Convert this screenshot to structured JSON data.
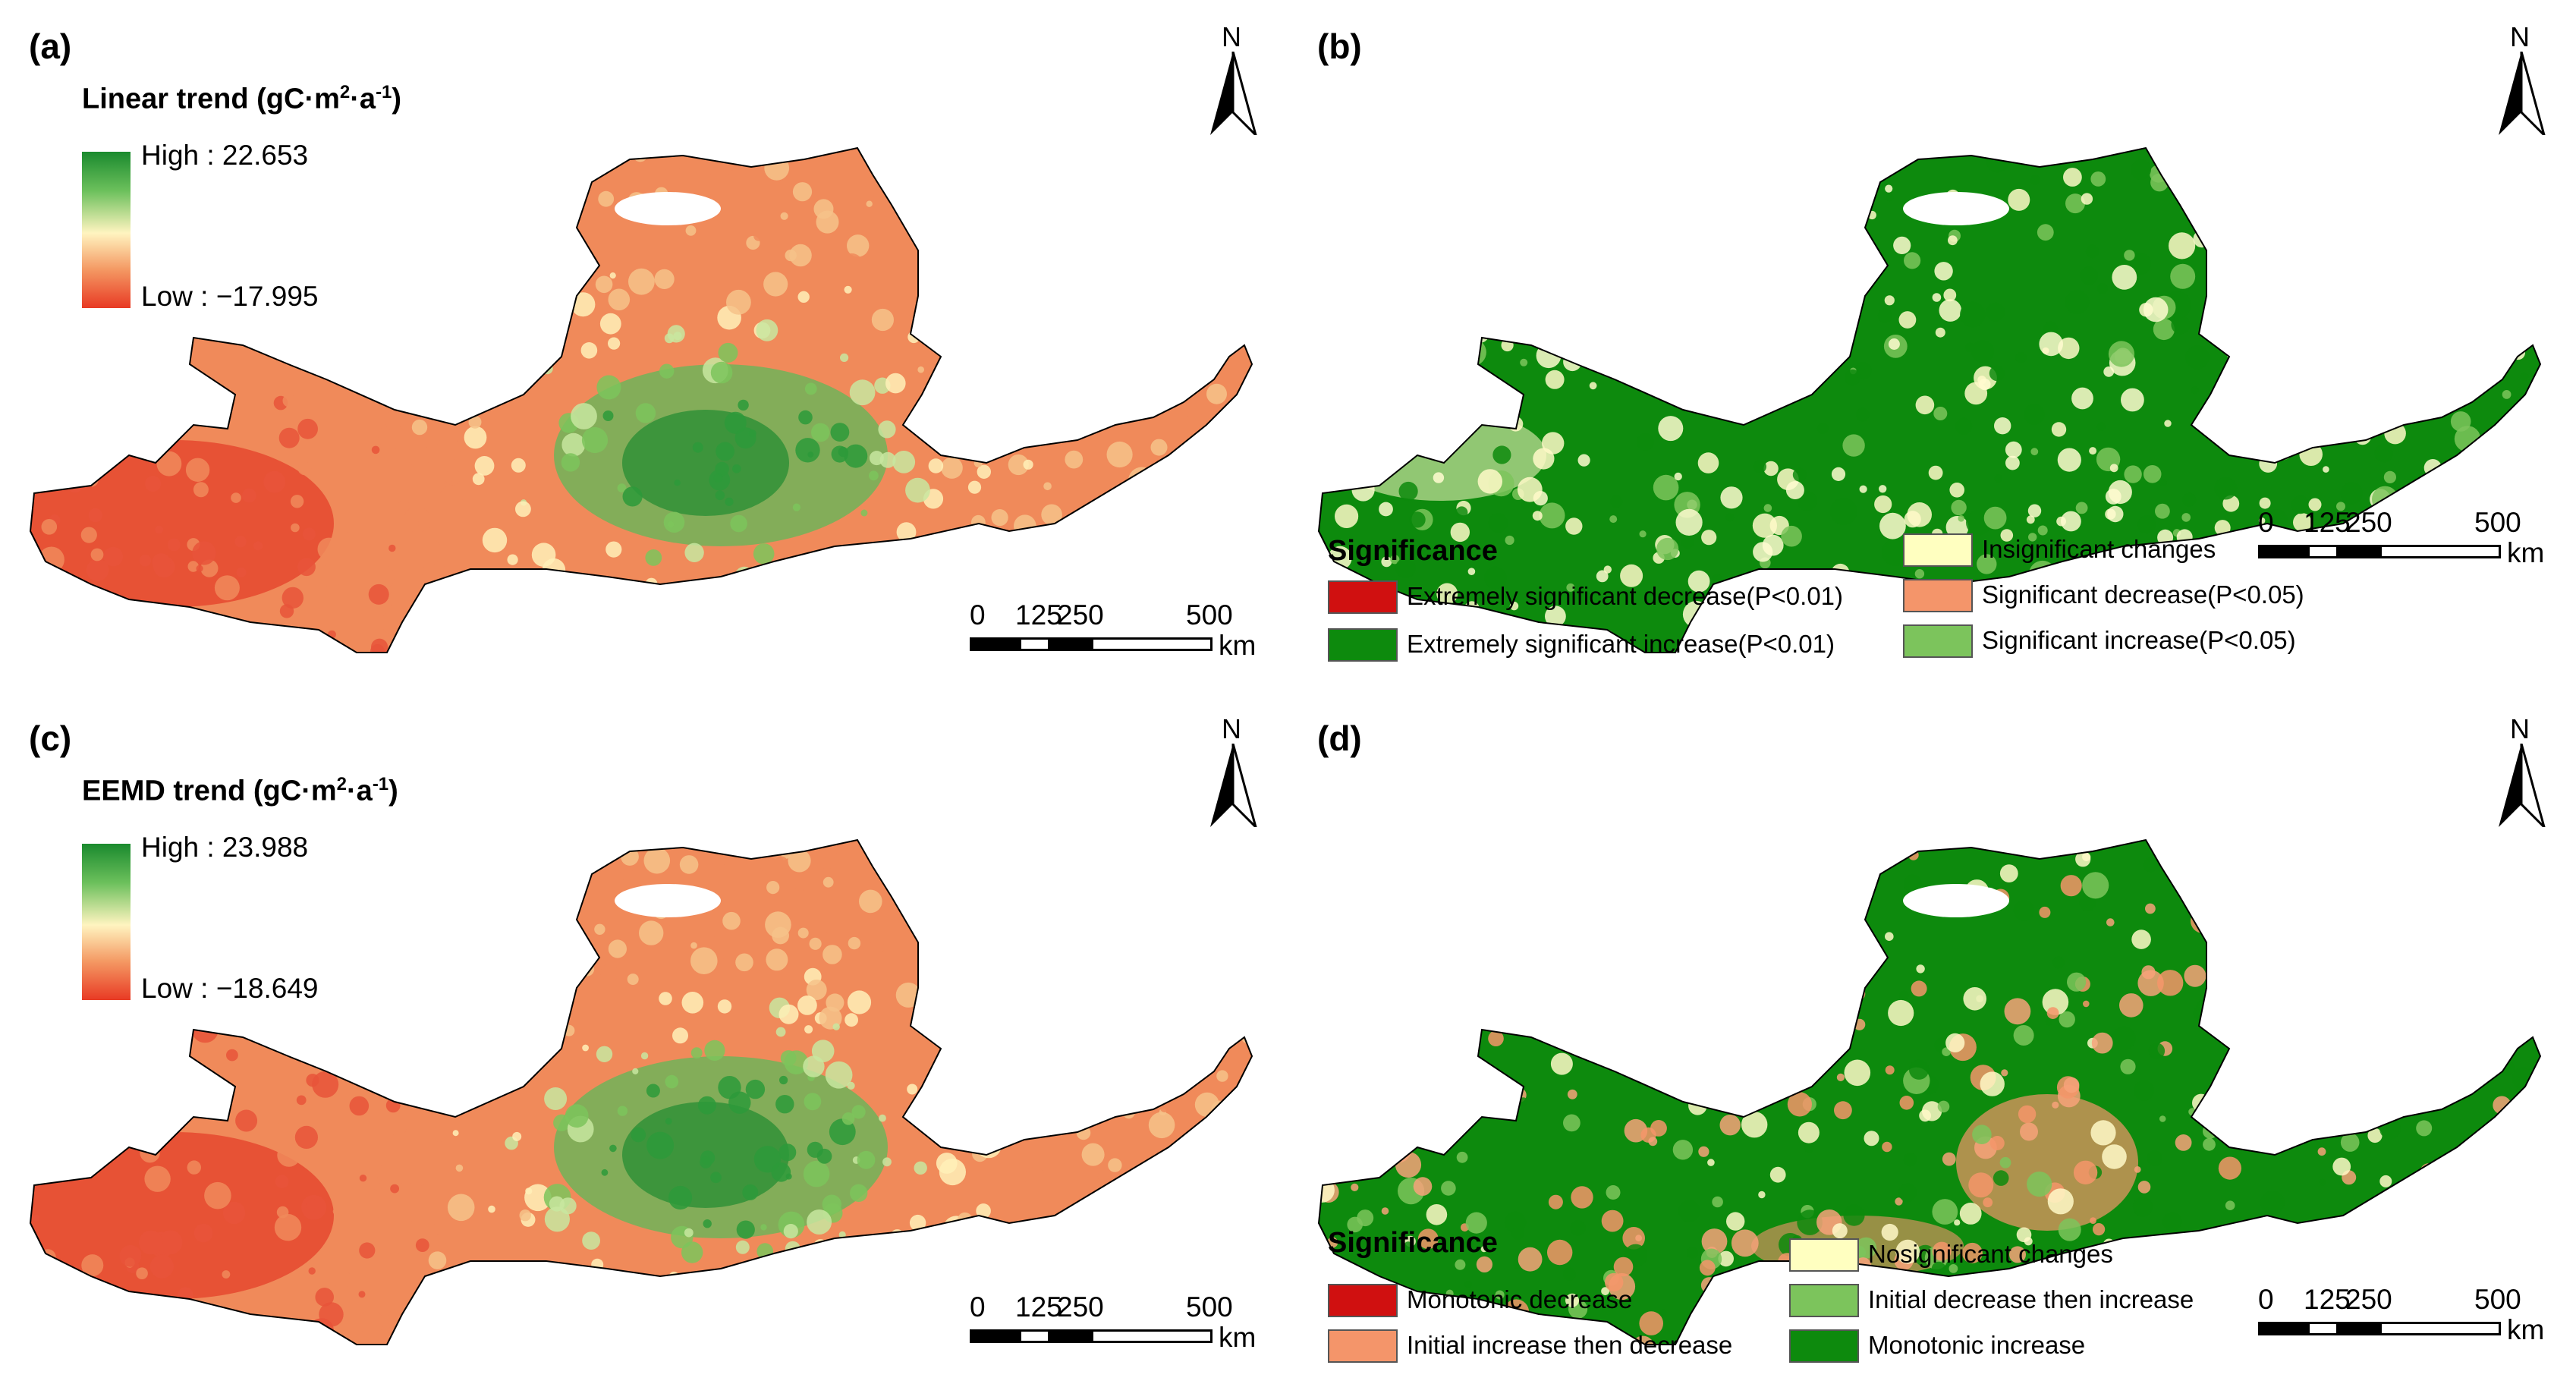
{
  "figure": {
    "panels": [
      {
        "id": "a",
        "label": "(a)",
        "legend_type": "continuous",
        "legend_title": "Linear trend",
        "unit_main": "(gC·m",
        "unit_sup1": "2",
        "unit_mid": "·a",
        "unit_sup2": "-1",
        "unit_end": ")",
        "high_text": "High : 22.653",
        "low_text": "Low : −17.995",
        "style": "trend"
      },
      {
        "id": "b",
        "label": "(b)",
        "legend_type": "categorical",
        "legend_title": "Significance",
        "items": [
          {
            "label": "Extremely significant decrease(P<0.01)",
            "color": "#d01010"
          },
          {
            "label": "Extremely significant increase(P<0.01)",
            "color": "#0d8a0d"
          },
          {
            "label": "Insignificant changes",
            "color": "#ffffc0"
          },
          {
            "label": "Significant decrease(P<0.05)",
            "color": "#f4956a"
          },
          {
            "label": "Significant increase(P<0.05)",
            "color": "#7cc45c"
          }
        ],
        "style": "significance"
      },
      {
        "id": "c",
        "label": "(c)",
        "legend_type": "continuous",
        "legend_title": "EEMD trend",
        "unit_main": "(gC·m",
        "unit_sup1": "2",
        "unit_mid": "·a",
        "unit_sup2": "-1",
        "unit_end": ")",
        "high_text": "High : 23.988",
        "low_text": "Low : −18.649",
        "style": "trend"
      },
      {
        "id": "d",
        "label": "(d)",
        "legend_type": "categorical",
        "legend_title": "Significance",
        "items": [
          {
            "label": "Monotonic decrease",
            "color": "#d01010"
          },
          {
            "label": "Initial increase then decrease",
            "color": "#f4956a"
          },
          {
            "label": "Nosignificant changes",
            "color": "#ffffc0"
          },
          {
            "label": "Initial decrease then increase",
            "color": "#7cc45c"
          },
          {
            "label": "Monotonic increase",
            "color": "#0d8a0d"
          }
        ],
        "style": "pattern"
      }
    ],
    "north_label": "N",
    "scale_ticks": [
      "0",
      "125",
      "250",
      "500"
    ],
    "scale_unit": "km",
    "colors": {
      "trend_high": "#1a8a2e",
      "trend_mid": "#fff4c0",
      "trend_low": "#e83a24",
      "green": "#0d8a0d"
    }
  }
}
